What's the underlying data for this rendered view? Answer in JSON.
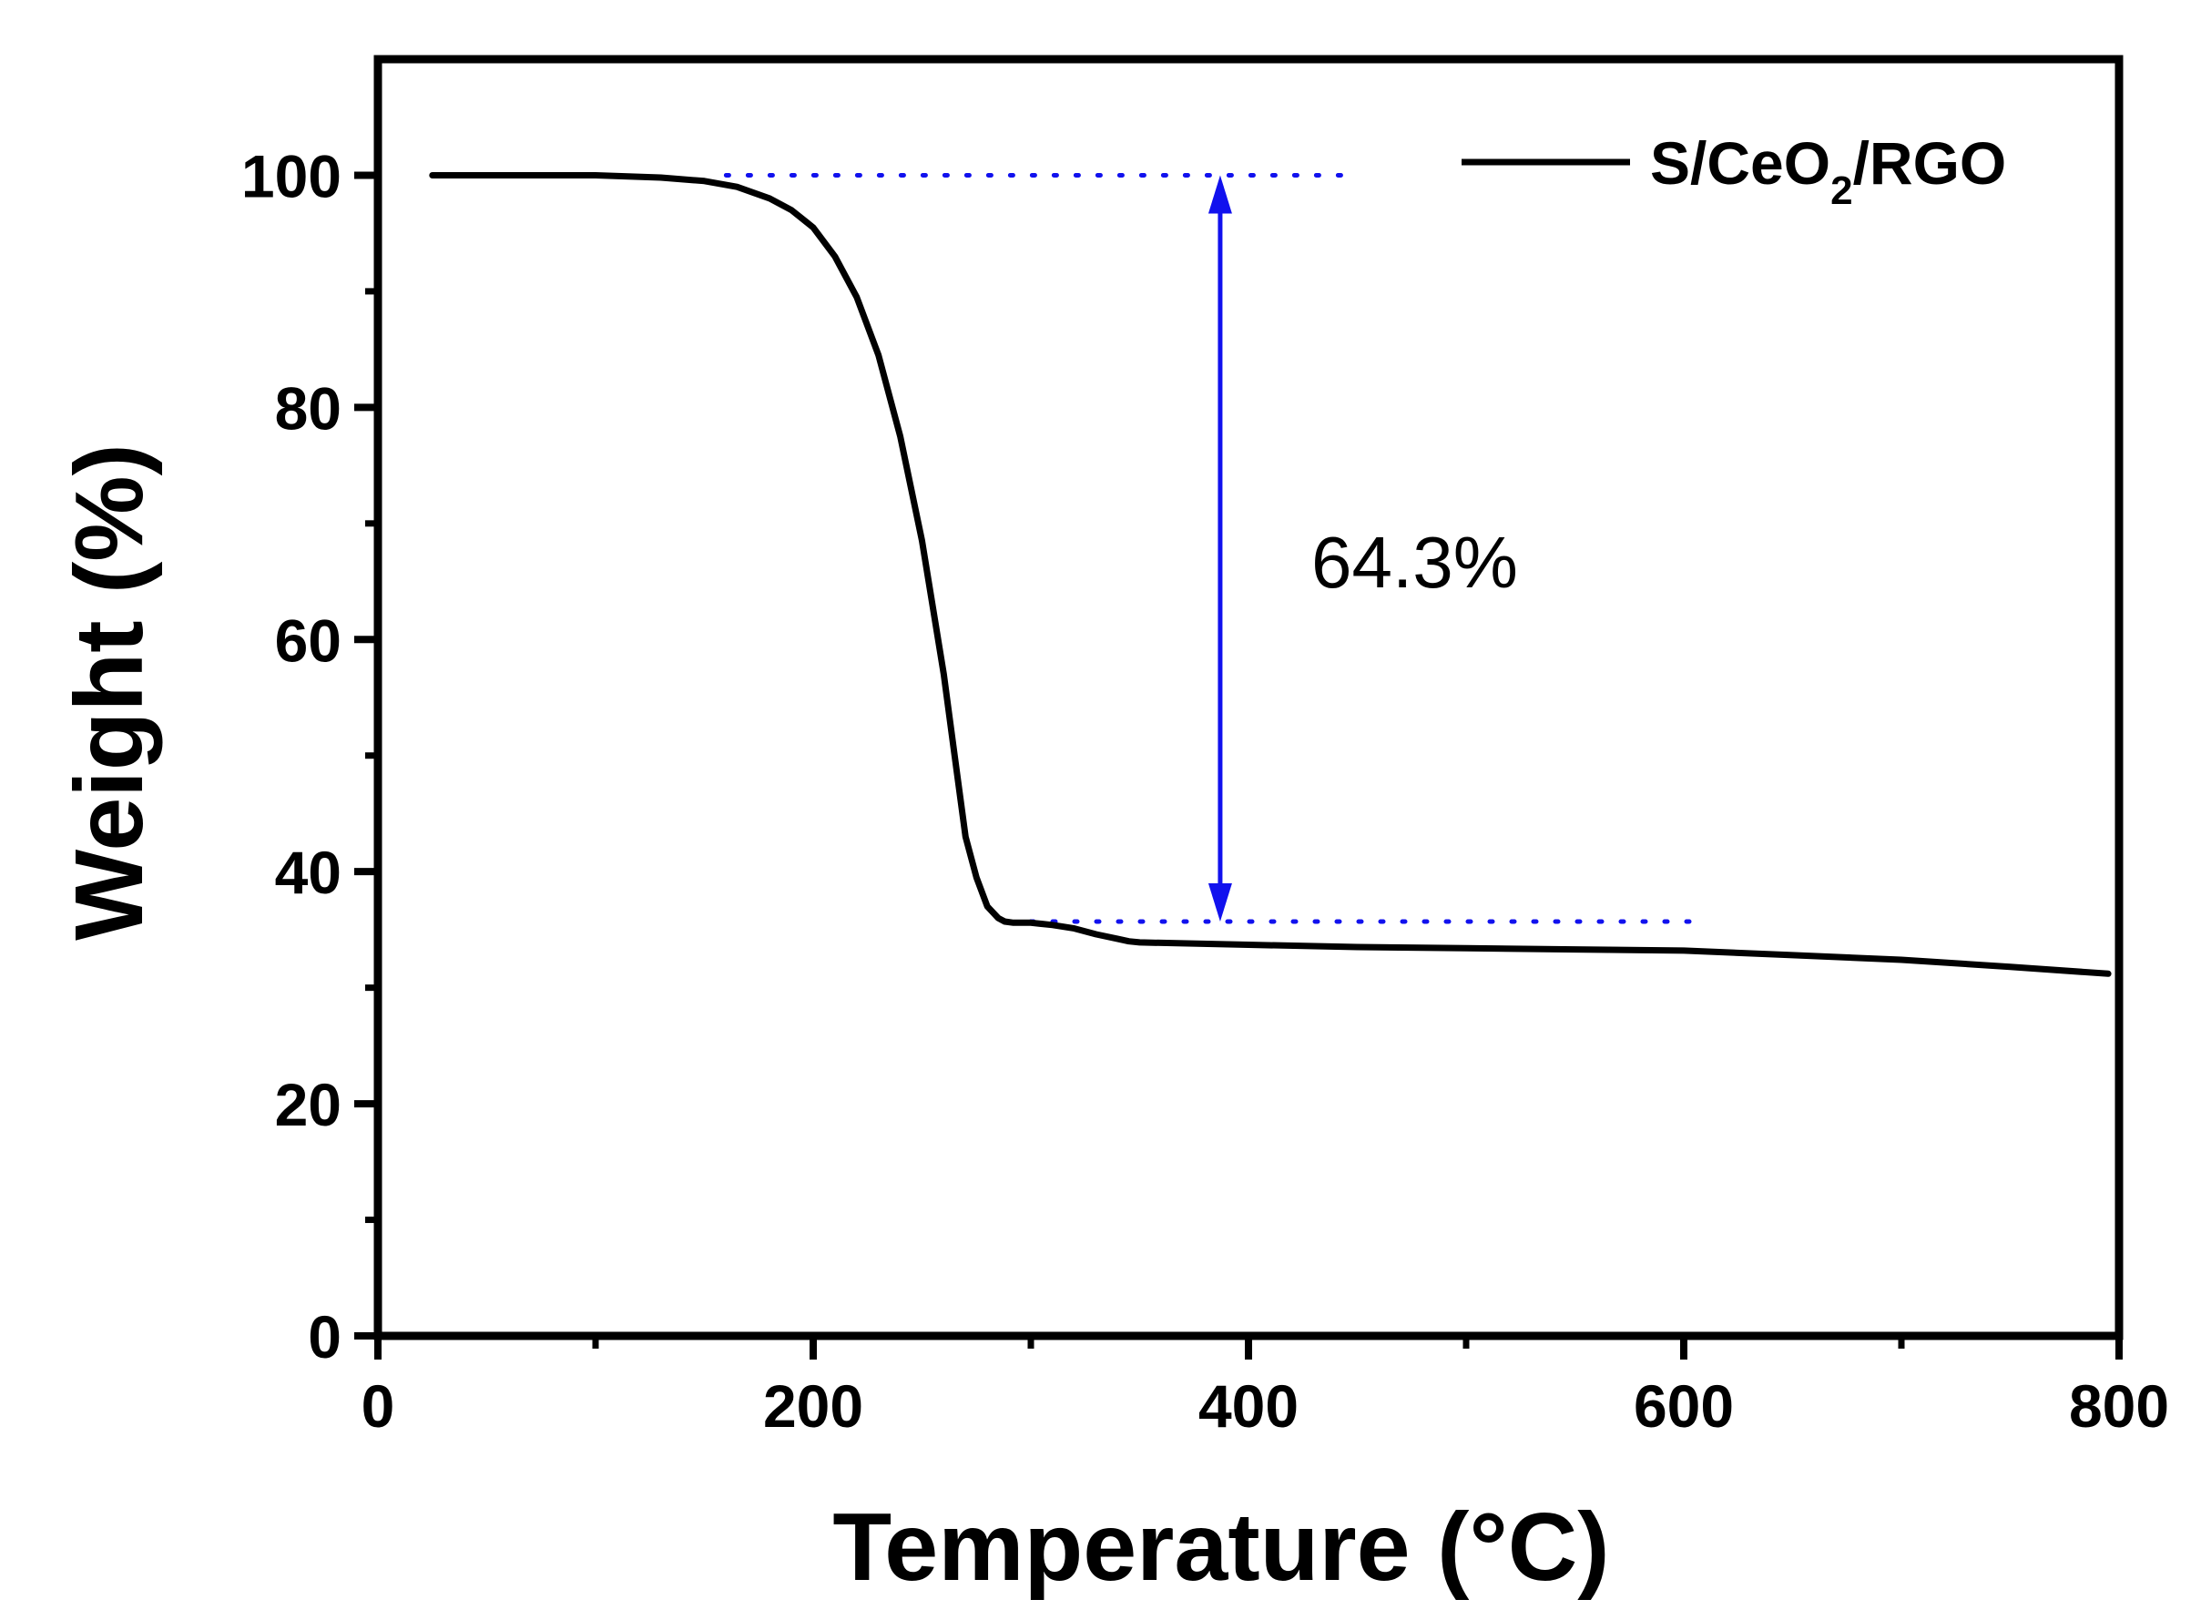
{
  "chart_data": {
    "type": "line",
    "title": "",
    "xlabel": "Temperature (°C)",
    "ylabel": "Weight (%)",
    "xlim": [
      0,
      800
    ],
    "ylim": [
      0,
      110
    ],
    "xticks": [
      0,
      200,
      400,
      600,
      800
    ],
    "xtick_labels": [
      "0",
      "200",
      "400",
      "600",
      "800"
    ],
    "yticks": [
      0,
      20,
      40,
      60,
      80,
      100
    ],
    "ytick_labels": [
      "0",
      "20",
      "40",
      "60",
      "80",
      "100"
    ],
    "grid": false,
    "legend_position": "top-right",
    "series": [
      {
        "name": "S/CeO2/RGO",
        "legend_main": "S/CeO",
        "legend_sub": "2",
        "legend_tail": "/RGO",
        "color": "#000000",
        "x": [
          25,
          50,
          100,
          130,
          150,
          165,
          180,
          190,
          200,
          210,
          220,
          230,
          240,
          250,
          260,
          265,
          270,
          275,
          280,
          285,
          288,
          292,
          296,
          300,
          310,
          320,
          330,
          340,
          345,
          350,
          400,
          450,
          500,
          550,
          600,
          650,
          700,
          750,
          795
        ],
        "y": [
          100,
          100,
          100,
          99.8,
          99.5,
          99,
          98,
          97,
          95.5,
          93,
          89.5,
          84.5,
          77.5,
          68.5,
          57,
          50,
          43,
          39.5,
          37,
          36,
          35.7,
          35.6,
          35.6,
          35.6,
          35.4,
          35.1,
          34.6,
          34.2,
          34.0,
          33.9,
          33.7,
          33.5,
          33.4,
          33.3,
          33.2,
          32.8,
          32.4,
          31.8,
          31.2
        ]
      }
    ],
    "annotations": [
      {
        "text": "64.3%",
        "x": 430,
        "y": 67
      }
    ],
    "reference_lines": [
      {
        "y": 100,
        "x_from": 160,
        "x_to": 450,
        "style": "dotted",
        "color": "#1111ee"
      },
      {
        "y": 35.7,
        "x_from": 300,
        "x_to": 605,
        "style": "dotted",
        "color": "#1111ee"
      }
    ],
    "arrow": {
      "x": 387,
      "y_from": 100,
      "y_to": 35.7,
      "color": "#1111ee",
      "double_headed": true
    }
  }
}
